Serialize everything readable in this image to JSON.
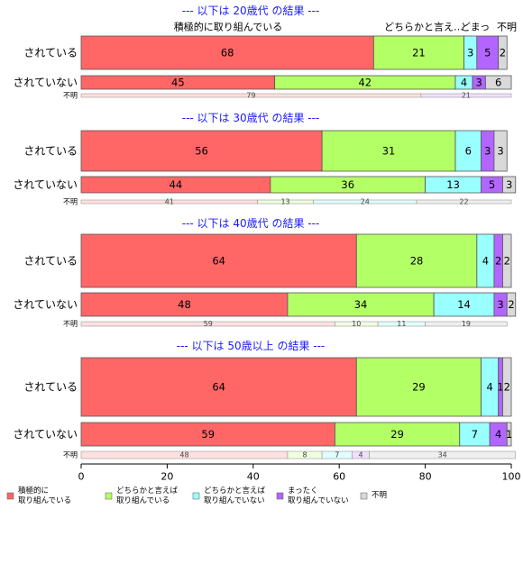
{
  "chart_data": {
    "type": "bar",
    "orientation": "horizontal",
    "stacked": true,
    "xlim": [
      0,
      100
    ],
    "x_ticks": [
      0,
      20,
      40,
      60,
      80,
      100
    ],
    "legend_position": "bottom",
    "colors": [
      "#ff6666",
      "#b3ff66",
      "#99ffff",
      "#b366ff",
      "#d9d9d9"
    ],
    "legend": [
      {
        "lines": [
          "積極的に",
          "取り組んでいる"
        ]
      },
      {
        "lines": [
          "どちらかと言えば",
          "取り組んでいる"
        ]
      },
      {
        "lines": [
          "どちらかと言えば",
          "取り組んでいない"
        ]
      },
      {
        "lines": [
          "まったく",
          "取り組んでいない"
        ]
      },
      {
        "lines": [
          "不明"
        ]
      }
    ],
    "top_labels": [
      "積極的に取り組んでいる",
      "どちらかと言え…",
      "どまっ",
      "不明"
    ],
    "panels": [
      {
        "title": "--- 以下は 20歳代 の結果 ---",
        "rows": [
          {
            "label": "されている",
            "values": [
              68,
              21,
              3,
              5,
              2
            ]
          },
          {
            "label": "されていない",
            "values": [
              45,
              42,
              4,
              3,
              6
            ]
          },
          {
            "label": "不明",
            "values": [
              79,
              0,
              0,
              21,
              0
            ]
          }
        ]
      },
      {
        "title": "--- 以下は 30歳代 の結果 ---",
        "rows": [
          {
            "label": "されている",
            "values": [
              56,
              31,
              6,
              3,
              3
            ]
          },
          {
            "label": "されていない",
            "values": [
              44,
              36,
              13,
              5,
              3
            ]
          },
          {
            "label": "不明",
            "values": [
              41,
              13,
              24,
              0,
              22
            ]
          }
        ]
      },
      {
        "title": "--- 以下は 40歳代 の結果 ---",
        "rows": [
          {
            "label": "されている",
            "values": [
              64,
              28,
              4,
              2,
              2
            ]
          },
          {
            "label": "されていない",
            "values": [
              48,
              34,
              14,
              3,
              2
            ]
          },
          {
            "label": "不明",
            "values": [
              59,
              10,
              11,
              0,
              19
            ]
          }
        ]
      },
      {
        "title": "--- 以下は 50歳以上 の結果 ---",
        "rows": [
          {
            "label": "されている",
            "values": [
              64,
              29,
              4,
              1,
              2
            ]
          },
          {
            "label": "されていない",
            "values": [
              59,
              29,
              7,
              4,
              1
            ]
          },
          {
            "label": "不明",
            "values": [
              48,
              8,
              7,
              4,
              34
            ]
          }
        ]
      }
    ]
  }
}
